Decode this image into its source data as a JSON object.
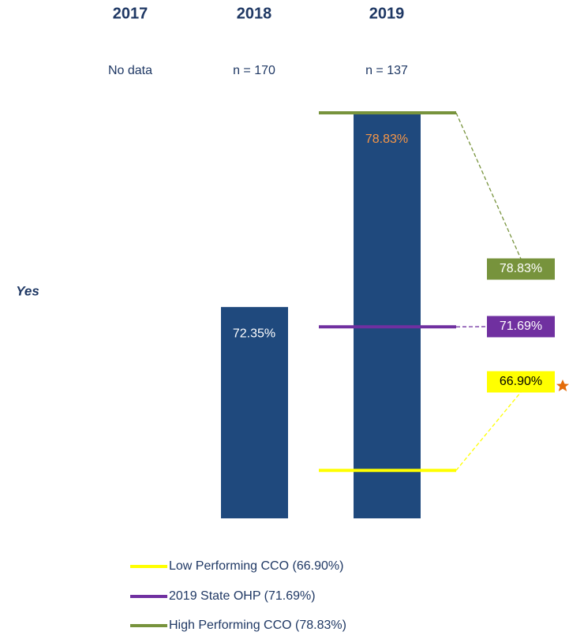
{
  "chart_data": {
    "type": "bar",
    "categories": [
      "2017",
      "2018",
      "2019"
    ],
    "subtitles": [
      "No data",
      "n = 170",
      "n = 137"
    ],
    "row_label": "Yes",
    "values": [
      null,
      72.35,
      78.83
    ],
    "value_labels": [
      null,
      "72.35%",
      "78.83%"
    ],
    "value_label_colors": [
      null,
      "#ffffff",
      "#f79646"
    ],
    "color": "#1f497d",
    "ylim": [
      65.3,
      78.83
    ],
    "reference_lines": [
      {
        "name": "Low Performing CCO (66.90%)",
        "value": 66.9,
        "label": "66.90%",
        "color": "#ffff00",
        "text_color": "#000000"
      },
      {
        "name": "2019 State OHP (71.69%)",
        "value": 71.69,
        "label": "71.69%",
        "color": "#7030a0",
        "text_color": "#ffffff"
      },
      {
        "name": "High Performing CCO (78.83%)",
        "value": 78.83,
        "label": "78.83%",
        "color": "#77933c",
        "text_color": "#ffffff"
      }
    ]
  }
}
